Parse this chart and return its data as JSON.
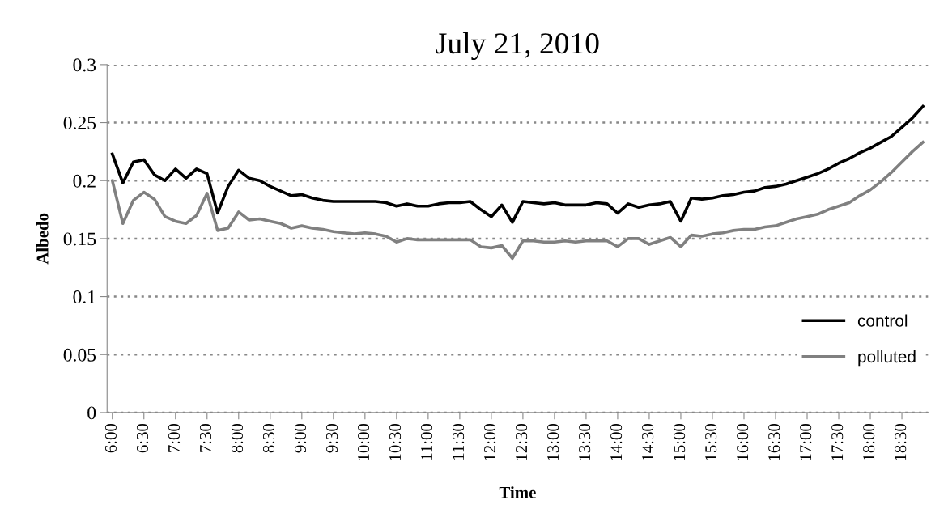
{
  "chart_data": {
    "type": "line",
    "title": "July 21, 2010",
    "xlabel": "Time",
    "ylabel": "Albedo",
    "categories": [
      "6:00",
      null,
      null,
      "6:30",
      null,
      null,
      "7:00",
      null,
      null,
      "7:30",
      null,
      null,
      "8:00",
      null,
      null,
      "8:30",
      null,
      null,
      "9:00",
      null,
      null,
      "9:30",
      null,
      null,
      "10:00",
      null,
      null,
      "10:30",
      null,
      null,
      "11:00",
      null,
      null,
      "11:30",
      null,
      null,
      "12:00",
      null,
      null,
      "12:30",
      null,
      null,
      "13:00",
      null,
      null,
      "13:30",
      null,
      null,
      "14:00",
      null,
      null,
      "14:30",
      null,
      null,
      "15:00",
      null,
      null,
      "15:30",
      null,
      null,
      "16:00",
      null,
      null,
      "16:30",
      null,
      null,
      "17:00",
      null,
      null,
      "17:30",
      null,
      null,
      "18:00",
      null,
      null,
      "18:30",
      null,
      null
    ],
    "series": [
      {
        "name": "control",
        "color": "#000000",
        "values": [
          0.223,
          0.198,
          0.216,
          0.218,
          0.205,
          0.2,
          0.21,
          0.202,
          0.21,
          0.206,
          0.172,
          0.195,
          0.209,
          0.202,
          0.2,
          0.195,
          0.191,
          0.187,
          0.188,
          0.185,
          0.183,
          0.182,
          0.182,
          0.182,
          0.182,
          0.182,
          0.181,
          0.178,
          0.18,
          0.178,
          0.178,
          0.18,
          0.181,
          0.181,
          0.182,
          0.175,
          0.169,
          0.179,
          0.164,
          0.182,
          0.181,
          0.18,
          0.181,
          0.179,
          0.179,
          0.179,
          0.181,
          0.18,
          0.172,
          0.18,
          0.177,
          0.179,
          0.18,
          0.182,
          0.165,
          0.185,
          0.184,
          0.185,
          0.187,
          0.188,
          0.19,
          0.191,
          0.194,
          0.195,
          0.197,
          0.2,
          0.203,
          0.206,
          0.21,
          0.215,
          0.219,
          0.224,
          0.228,
          0.233,
          0.238,
          0.246,
          0.254,
          0.264
        ]
      },
      {
        "name": "polluted",
        "color": "#808080",
        "values": [
          0.2,
          0.163,
          0.183,
          0.19,
          0.184,
          0.169,
          0.165,
          0.163,
          0.17,
          0.189,
          0.157,
          0.159,
          0.173,
          0.166,
          0.167,
          0.165,
          0.163,
          0.159,
          0.161,
          0.159,
          0.158,
          0.156,
          0.155,
          0.154,
          0.155,
          0.154,
          0.152,
          0.147,
          0.15,
          0.149,
          0.149,
          0.149,
          0.149,
          0.149,
          0.149,
          0.143,
          0.142,
          0.144,
          0.133,
          0.148,
          0.148,
          0.147,
          0.147,
          0.148,
          0.147,
          0.148,
          0.148,
          0.148,
          0.143,
          0.15,
          0.15,
          0.145,
          0.148,
          0.151,
          0.143,
          0.153,
          0.152,
          0.154,
          0.155,
          0.157,
          0.158,
          0.158,
          0.16,
          0.161,
          0.164,
          0.167,
          0.169,
          0.171,
          0.175,
          0.178,
          0.181,
          0.187,
          0.192,
          0.199,
          0.207,
          0.216,
          0.225,
          0.233
        ]
      }
    ],
    "ylim": [
      0,
      0.3
    ],
    "yticks": [
      0,
      0.05,
      0.1,
      0.15,
      0.2,
      0.25,
      0.3
    ],
    "grid": "y",
    "legend": "bottom right",
    "marker": "none",
    "line_style": "solid"
  }
}
